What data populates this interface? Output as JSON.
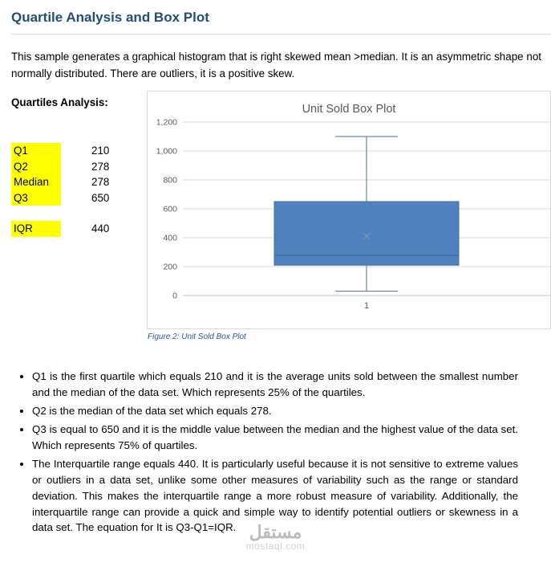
{
  "page": {
    "title": "Quartile Analysis and Box Plot",
    "intro": "This sample generates a graphical histogram that is right skewed mean >median. It is an asymmetric shape not normally distributed. There are outliers, it is a positive skew.",
    "quartiles_heading": "Quartiles Analysis:"
  },
  "quartiles": {
    "rows": [
      {
        "label": "Q1",
        "value": "210"
      },
      {
        "label": "Q2",
        "value": "278"
      },
      {
        "label": "Median",
        "value": "278"
      },
      {
        "label": "Q3",
        "value": "650"
      }
    ],
    "iqr": {
      "label": "IQR",
      "value": "440"
    }
  },
  "chart_data": {
    "type": "boxplot",
    "title": "Unit Sold Box Plot",
    "caption": "Figure 2: Unit Sold Box Plot",
    "x_tick": "1",
    "y_ticks": [
      "0",
      "200",
      "400",
      "600",
      "800",
      "1,000",
      "1,200"
    ],
    "ylim": [
      0,
      1200
    ],
    "box": {
      "min": 30,
      "q1": 210,
      "median": 278,
      "q3": 650,
      "max": 1100,
      "mean": 410
    },
    "legend_position": "none",
    "grid": true,
    "colors": {
      "box_fill": "#4E81BD",
      "box_border": "#41719C",
      "mean_marker": "#7C96B5",
      "axis": "#BFBFBF",
      "gridline": "#D9D9D9",
      "tick_label": "#595959",
      "title": "#595959"
    }
  },
  "bullets": [
    "Q1 is the first quartile which equals 210 and it is the average units sold between the smallest number and the median of the data set. Which represents 25% of the quartiles.",
    "Q2 is the median of the data set which equals 278.",
    "Q3 is equal to 650 and it is the middle value between the median and the highest value of the data set. Which represents 75% of quartiles.",
    "The Interquartile range equals 440. It is particularly useful because it is not sensitive to extreme values or outliers in a data set, unlike some other measures of variability such as the range or standard deviation. This makes the interquartile range a more robust measure of variability. Additionally, the interquartile range can provide a quick and simple way to identify potential outliers or skewness in a data set. The equation for It is Q3-Q1=IQR."
  ],
  "watermark": {
    "line1": "مستقل",
    "line2": "mostaql.com"
  }
}
